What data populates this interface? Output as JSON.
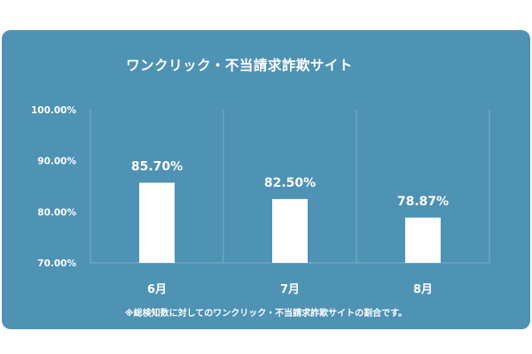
{
  "colors": {
    "background": "#ffffff",
    "panel": "#4e92b4",
    "bar": "#ffffff",
    "text": "#ffffff",
    "grid": "#7fb0c8"
  },
  "footnote": "※総検知数に対してのワンクリック・不当請求詐欺サイトの割合です。",
  "chart_data": {
    "type": "bar",
    "title": "ワンクリック・不当請求詐欺サイト",
    "xlabel": "",
    "ylabel": "",
    "categories": [
      "6月",
      "7月",
      "8月"
    ],
    "values": [
      85.7,
      82.5,
      78.87
    ],
    "value_labels": [
      "85.70%",
      "82.50%",
      "78.87%"
    ],
    "ylim": [
      70,
      100
    ],
    "yticks": [
      70,
      80,
      90,
      100
    ],
    "ytick_labels": [
      "70.00%",
      "80.00%",
      "90.00%",
      "100.00%"
    ],
    "grid": "vertical-separators",
    "legend": "none"
  }
}
